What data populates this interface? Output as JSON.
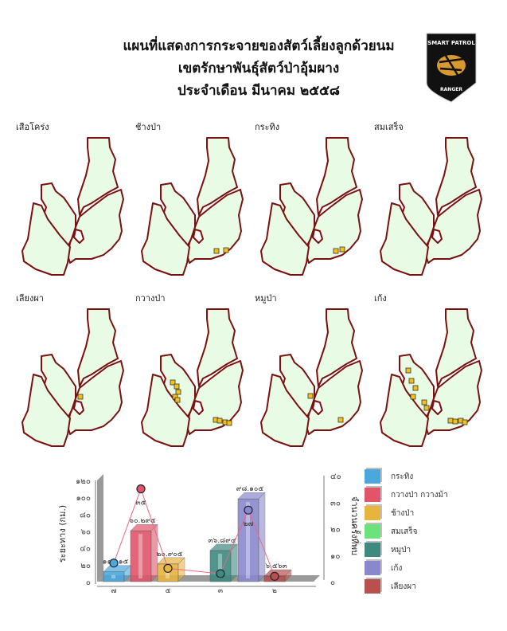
{
  "header": {
    "title_line1": "แผนที่แสดงการกระจายของสัตว์เลี้ยงลูกด้วยนม",
    "title_line2": "เขตรักษาพันธุ์สัตว์ป่าอุ้มผาง",
    "title_line3": "ประจำเดือน มีนาคม ๒๕๕๘",
    "logo_text_top": "SMART PATROL",
    "logo_text_bottom": "RANGER"
  },
  "maps": [
    {
      "label": "เสือโคร่ง"
    },
    {
      "label": "ช้างป่า"
    },
    {
      "label": "กระทิง"
    },
    {
      "label": "สมเสร็จ"
    },
    {
      "label": "เลียงผา"
    },
    {
      "label": "กวางป่า"
    },
    {
      "label": "หมูป่า"
    },
    {
      "label": "เก้ง"
    }
  ],
  "colors": {
    "map_fill": "#e8fbe4",
    "map_border": "#7a1010",
    "marker": "#f2c21a"
  },
  "chart_data": {
    "type": "bar",
    "ylabel": "ระยะทาง (กม.)",
    "y2label": "จำนวนครั้งที่พบ",
    "yticks": [
      "๐",
      "๒๐",
      "๔๐",
      "๖๐",
      "๘๐",
      "๑๐๐",
      "๑๒๐"
    ],
    "y2ticks": [
      "๐",
      "๑๐",
      "๒๐",
      "๓๐",
      "๔๐"
    ],
    "ylim": [
      0,
      120
    ],
    "y2lim": [
      0,
      40
    ],
    "series": [
      {
        "name": "กระทิง",
        "color": "#4aa8dc",
        "distance": 11.615,
        "distance_label": "๑๑.๖๑๕",
        "count": 7,
        "count_label": "๗"
      },
      {
        "name": "กวางป่า กวางม้า",
        "color": "#e0556a",
        "distance": 60.295,
        "distance_label": "๖๐.๒๙๕",
        "count": 35,
        "count_label": "๓๕"
      },
      {
        "name": "ช้างป่า",
        "color": "#e8b440",
        "distance": 20.905,
        "distance_label": "๒๐.๙๐๕",
        "count": 5,
        "count_label": "๕"
      },
      {
        "name": "สมเสร็จ",
        "color": "#6ee27a",
        "distance": null,
        "distance_label": "",
        "count": null,
        "count_label": ""
      },
      {
        "name": "หมูป่า",
        "color": "#3d8a80",
        "distance": 36.894,
        "distance_label": "๓๖.๘๙๔",
        "count": 3,
        "count_label": "๓"
      },
      {
        "name": "เก้ง",
        "color": "#8a88cc",
        "distance": 98.105,
        "distance_label": "๙๘.๑๐๕",
        "count": 27,
        "count_label": "๒๗"
      },
      {
        "name": "เลียงผา",
        "color": "#b8504c",
        "distance": 6.563,
        "distance_label": "๖.๕๖๓",
        "count": 2,
        "count_label": "๒"
      }
    ]
  }
}
